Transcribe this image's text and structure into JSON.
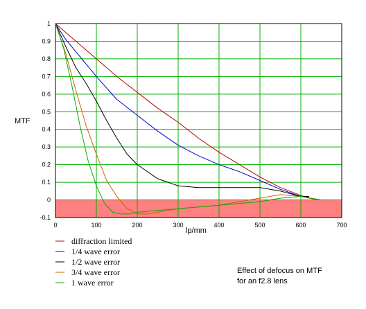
{
  "chart_data": {
    "type": "line",
    "title": "",
    "xlabel": "lp/mm",
    "ylabel": "MTF",
    "xlim": [
      0,
      700
    ],
    "ylim": [
      -0.1,
      1
    ],
    "xticks": [
      "0",
      "100",
      "200",
      "300",
      "400",
      "500",
      "600",
      "700"
    ],
    "yticks": [
      "1",
      "0.9",
      "0.8",
      "0.7",
      "0.6",
      "0.5",
      "0.4",
      "0.3",
      "0.2",
      "0.1",
      "0",
      "-0.1"
    ],
    "grid": true,
    "grid_color": "#00b000",
    "negative_region_color": "#ff8080",
    "legend_position": "bottom-left",
    "annotation": [
      "Effect of defocus on MTF",
      "for an f2.8 lens"
    ],
    "series": [
      {
        "name": "diffraction limited",
        "color": "#c00000",
        "x": [
          0,
          50,
          100,
          150,
          200,
          250,
          300,
          350,
          400,
          450,
          500,
          550,
          600,
          620,
          640
        ],
        "y": [
          1.0,
          0.9,
          0.8,
          0.7,
          0.61,
          0.52,
          0.44,
          0.35,
          0.27,
          0.2,
          0.13,
          0.07,
          0.025,
          0.012,
          0.0
        ]
      },
      {
        "name": "1/4 wave error",
        "color": "#0000cc",
        "x": [
          0,
          25,
          50,
          100,
          150,
          200,
          250,
          300,
          350,
          400,
          450,
          500,
          550,
          600,
          620
        ],
        "y": [
          1.0,
          0.91,
          0.84,
          0.7,
          0.57,
          0.48,
          0.39,
          0.31,
          0.25,
          0.2,
          0.16,
          0.11,
          0.06,
          0.02,
          0.015
        ]
      },
      {
        "name": "1/2 wave error",
        "color": "#000000",
        "x": [
          0,
          25,
          50,
          75,
          100,
          125,
          150,
          175,
          200,
          250,
          300,
          350,
          400,
          450,
          500,
          550,
          600,
          620
        ],
        "y": [
          1.0,
          0.87,
          0.75,
          0.66,
          0.56,
          0.45,
          0.35,
          0.26,
          0.2,
          0.12,
          0.08,
          0.07,
          0.07,
          0.07,
          0.07,
          0.05,
          0.02,
          0.02
        ]
      },
      {
        "name": "3/4 wave error",
        "color": "#d06000",
        "x": [
          0,
          25,
          50,
          75,
          100,
          125,
          150,
          175,
          200,
          225,
          250,
          300,
          350,
          400,
          450,
          500,
          550,
          600,
          640
        ],
        "y": [
          1.0,
          0.83,
          0.62,
          0.42,
          0.26,
          0.11,
          0.02,
          -0.05,
          -0.08,
          -0.08,
          -0.07,
          -0.05,
          -0.04,
          -0.03,
          -0.01,
          0.01,
          0.03,
          0.02,
          0.0
        ]
      },
      {
        "name": "1 wave error",
        "color": "#00b000",
        "x": [
          0,
          20,
          40,
          60,
          80,
          100,
          120,
          140,
          160,
          180,
          200,
          250,
          300,
          350,
          400,
          450,
          500,
          550,
          600,
          650
        ],
        "y": [
          1.0,
          0.86,
          0.65,
          0.42,
          0.22,
          0.08,
          -0.02,
          -0.07,
          -0.08,
          -0.08,
          -0.07,
          -0.06,
          -0.05,
          -0.04,
          -0.03,
          -0.02,
          -0.01,
          0.01,
          0.02,
          0.0
        ]
      }
    ]
  }
}
